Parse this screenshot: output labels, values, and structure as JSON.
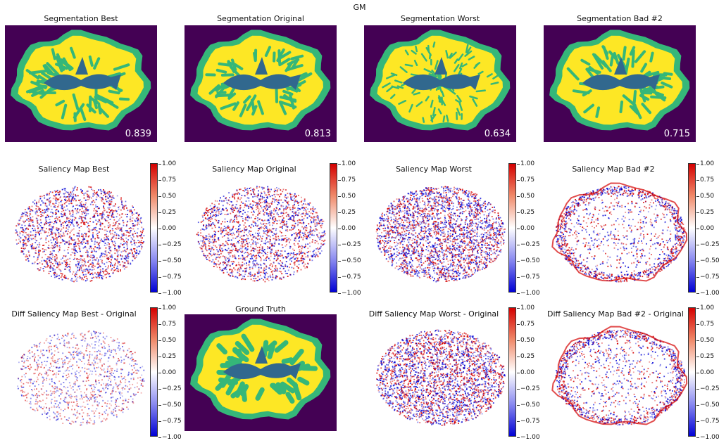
{
  "figure": {
    "suptitle": "GM"
  },
  "row1": [
    {
      "title": "Segmentation Best",
      "score": "0.839",
      "variant": "best"
    },
    {
      "title": "Segmentation Original",
      "score": "0.813",
      "variant": "best"
    },
    {
      "title": "Segmentation Worst",
      "score": "0.634",
      "variant": "noisy"
    },
    {
      "title": "Segmentation Bad #2",
      "score": "0.715",
      "variant": "smooth"
    }
  ],
  "row2": [
    {
      "title": "Saliency Map Best",
      "variant": "speckle"
    },
    {
      "title": "Saliency Map Original",
      "variant": "speckle"
    },
    {
      "title": "Saliency Map Worst",
      "variant": "dense"
    },
    {
      "title": "Saliency Map Bad #2",
      "variant": "edge"
    }
  ],
  "row3": [
    {
      "title": "Diff Saliency Map Best - Original",
      "variant": "faint"
    },
    {
      "title": "Ground Truth",
      "variant": "gt"
    },
    {
      "title": "Diff Saliency Map Worst - Original",
      "variant": "dense"
    },
    {
      "title": "Diff Saliency Map Bad #2 - Original",
      "variant": "edge"
    }
  ],
  "colorbar_ticks": [
    "1.00",
    "0.75",
    "0.50",
    "0.25",
    "0.00",
    "−0.25",
    "−0.50",
    "−0.75",
    "−1.00"
  ],
  "colors": {
    "background": "#440154",
    "wm": "#fde725",
    "gm": "#35b779",
    "csf": "#31688e",
    "pos": "#d40000",
    "neg": "#0000d4"
  }
}
